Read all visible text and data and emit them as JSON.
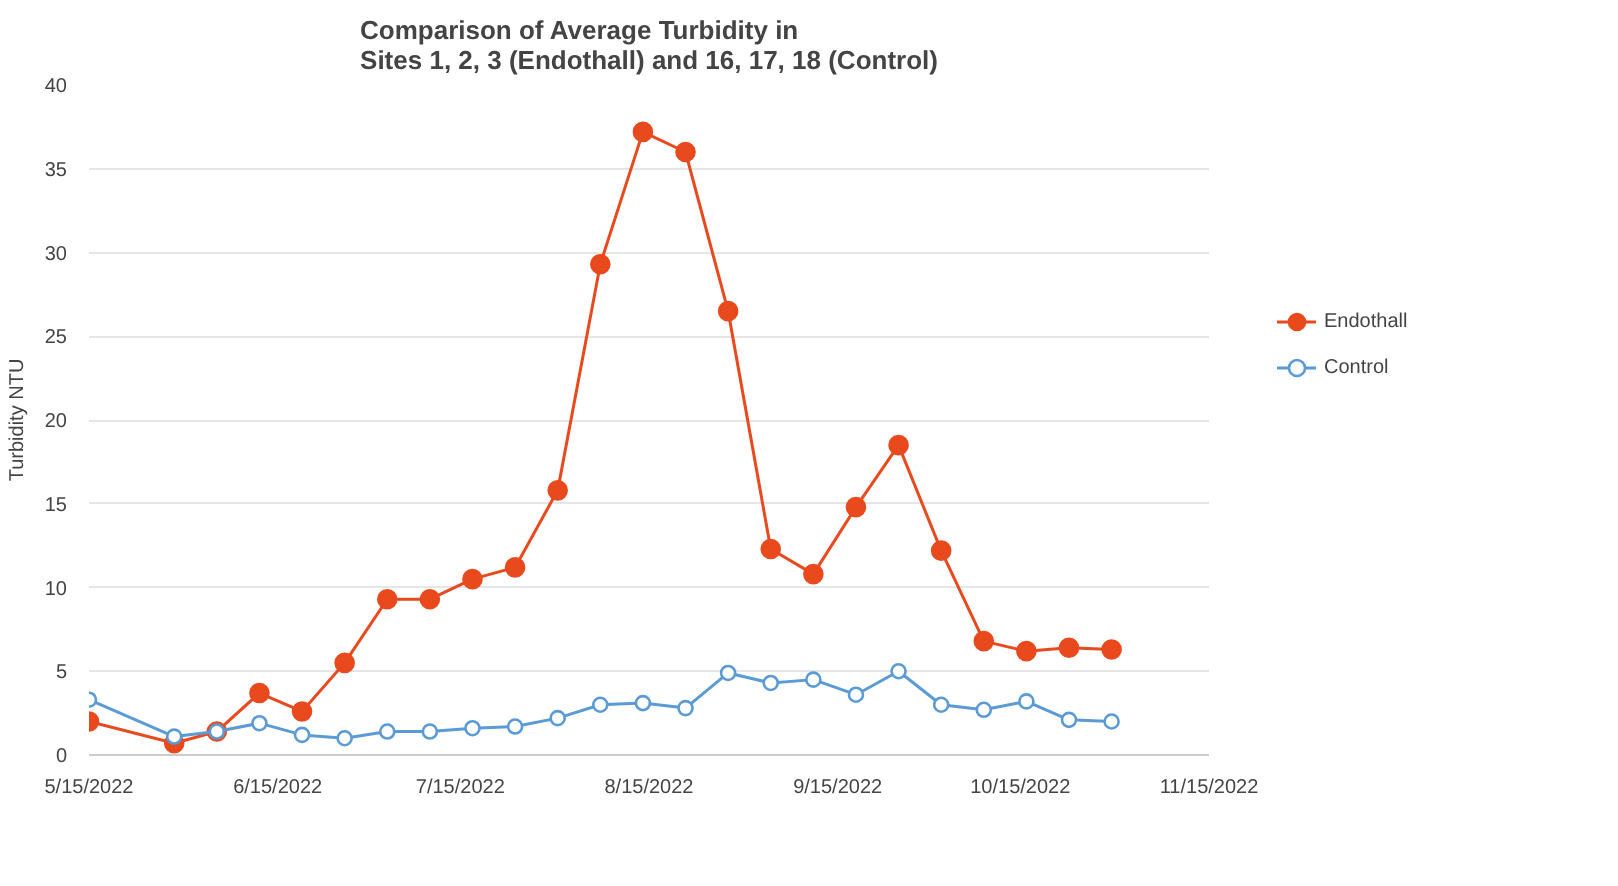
{
  "chart_data": {
    "type": "line",
    "title": "Comparison of Average Turbidity in\nSites 1, 2, 3 (Endothall) and 16, 17, 18 (Control)",
    "ylabel": "Turbidity NTU",
    "x": [
      "2022-05-15",
      "2022-05-29",
      "2022-06-05",
      "2022-06-12",
      "2022-06-19",
      "2022-06-26",
      "2022-07-03",
      "2022-07-10",
      "2022-07-17",
      "2022-07-24",
      "2022-07-31",
      "2022-08-07",
      "2022-08-14",
      "2022-08-21",
      "2022-08-28",
      "2022-09-04",
      "2022-09-11",
      "2022-09-18",
      "2022-09-25",
      "2022-10-02",
      "2022-10-09",
      "2022-10-16",
      "2022-10-23",
      "2022-10-30"
    ],
    "series": [
      {
        "name": "Endothall",
        "color": "#e8491d",
        "marker": "circle",
        "values": [
          2.0,
          0.7,
          1.4,
          3.7,
          2.6,
          5.5,
          9.3,
          9.3,
          10.5,
          11.2,
          15.8,
          29.3,
          37.2,
          36.0,
          26.5,
          12.3,
          10.8,
          14.8,
          18.5,
          12.2,
          6.8,
          6.2,
          6.4,
          6.3
        ]
      },
      {
        "name": "Control",
        "color": "#5b9bd5",
        "marker": "open_circle",
        "values": [
          3.3,
          1.1,
          1.4,
          1.9,
          1.2,
          1.0,
          1.4,
          1.4,
          1.6,
          1.7,
          2.2,
          3.0,
          3.1,
          2.8,
          4.9,
          4.3,
          4.5,
          3.6,
          5.0,
          3.0,
          2.7,
          3.2,
          2.1,
          2.0
        ]
      }
    ],
    "xlim": [
      "2022-05-15",
      "2022-11-15"
    ],
    "xticks": [
      {
        "value": "2022-05-15",
        "label": "5/15/2022"
      },
      {
        "value": "2022-06-15",
        "label": "6/15/2022"
      },
      {
        "value": "2022-07-15",
        "label": "7/15/2022"
      },
      {
        "value": "2022-08-15",
        "label": "8/15/2022"
      },
      {
        "value": "2022-09-15",
        "label": "9/15/2022"
      },
      {
        "value": "2022-10-15",
        "label": "10/15/2022"
      },
      {
        "value": "2022-11-15",
        "label": "11/15/2022"
      }
    ],
    "ylim": [
      0,
      40
    ],
    "yticks": [
      0,
      5,
      10,
      15,
      20,
      25,
      30,
      35,
      40
    ],
    "grid": "y",
    "legend": "right",
    "line_style": "solid"
  }
}
